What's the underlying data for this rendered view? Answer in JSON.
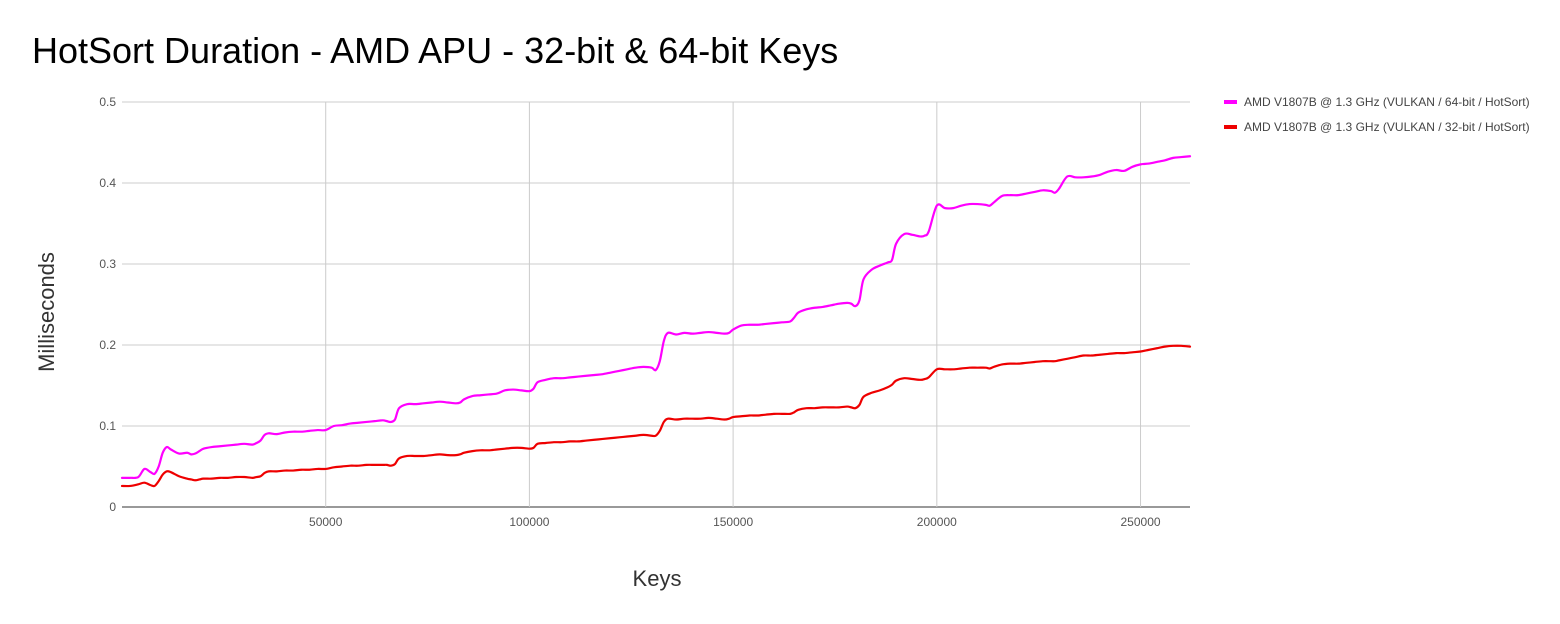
{
  "chart_data": {
    "type": "line",
    "title": "HotSort Duration - AMD APU - 32-bit & 64-bit Keys",
    "xlabel": "Keys",
    "ylabel": "Milliseconds",
    "xlim": [
      0,
      262144
    ],
    "ylim": [
      0,
      0.5
    ],
    "x_ticks": [
      50000,
      100000,
      150000,
      200000,
      250000
    ],
    "y_ticks": [
      0,
      0.1,
      0.2,
      0.3,
      0.4,
      0.5
    ],
    "grid": true,
    "legend_position": "top-right",
    "series": [
      {
        "name": "AMD V1807B @ 1.3 GHz (VULKAN / 64-bit / HotSort)",
        "color": "#ff00ff",
        "x": [
          0,
          2000,
          4000,
          5500,
          7000,
          8000,
          9000,
          10000,
          11000,
          12000,
          14000,
          16000,
          17000,
          18000,
          19000,
          20000,
          22000,
          24000,
          26000,
          28000,
          30000,
          32000,
          33000,
          34000,
          35000,
          36000,
          38000,
          40000,
          42000,
          44000,
          46000,
          48000,
          50000,
          52000,
          54000,
          56000,
          58000,
          60000,
          62000,
          64000,
          65000,
          66000,
          67000,
          68000,
          70000,
          72000,
          74000,
          76000,
          78000,
          80000,
          82000,
          83000,
          84000,
          86000,
          88000,
          90000,
          92000,
          94000,
          96000,
          98000,
          100000,
          101000,
          102000,
          104000,
          106000,
          108000,
          110000,
          112000,
          114000,
          116000,
          118000,
          120000,
          122000,
          124000,
          126000,
          128000,
          130000,
          131000,
          132000,
          133000,
          134000,
          136000,
          138000,
          140000,
          142000,
          144000,
          146000,
          148000,
          149000,
          150000,
          152000,
          154000,
          156000,
          158000,
          160000,
          162000,
          164000,
          165000,
          166000,
          168000,
          170000,
          172000,
          174000,
          176000,
          178000,
          179000,
          180000,
          181000,
          182000,
          184000,
          186000,
          188000,
          189000,
          190000,
          192000,
          194000,
          196000,
          197000,
          198000,
          200000,
          202000,
          204000,
          206000,
          208000,
          210000,
          212000,
          213000,
          214000,
          216000,
          218000,
          220000,
          222000,
          224000,
          226000,
          228000,
          229000,
          230000,
          232000,
          234000,
          236000,
          238000,
          240000,
          242000,
          244000,
          246000,
          248000,
          250000,
          252000,
          254000,
          256000,
          258000,
          260000,
          262144
        ],
        "values": [
          0.036,
          0.036,
          0.037,
          0.047,
          0.043,
          0.041,
          0.05,
          0.067,
          0.074,
          0.071,
          0.066,
          0.067,
          0.065,
          0.066,
          0.069,
          0.072,
          0.074,
          0.075,
          0.076,
          0.077,
          0.078,
          0.077,
          0.079,
          0.082,
          0.089,
          0.091,
          0.09,
          0.092,
          0.093,
          0.093,
          0.094,
          0.095,
          0.095,
          0.1,
          0.101,
          0.103,
          0.104,
          0.105,
          0.106,
          0.107,
          0.106,
          0.105,
          0.108,
          0.122,
          0.127,
          0.127,
          0.128,
          0.129,
          0.13,
          0.129,
          0.128,
          0.129,
          0.133,
          0.137,
          0.138,
          0.139,
          0.14,
          0.144,
          0.145,
          0.144,
          0.143,
          0.146,
          0.154,
          0.157,
          0.159,
          0.159,
          0.16,
          0.161,
          0.162,
          0.163,
          0.164,
          0.166,
          0.168,
          0.17,
          0.172,
          0.173,
          0.172,
          0.169,
          0.18,
          0.205,
          0.215,
          0.213,
          0.215,
          0.214,
          0.215,
          0.216,
          0.215,
          0.214,
          0.215,
          0.219,
          0.224,
          0.225,
          0.225,
          0.226,
          0.227,
          0.228,
          0.229,
          0.234,
          0.24,
          0.244,
          0.246,
          0.247,
          0.249,
          0.251,
          0.252,
          0.251,
          0.248,
          0.255,
          0.281,
          0.293,
          0.298,
          0.302,
          0.305,
          0.325,
          0.337,
          0.336,
          0.334,
          0.335,
          0.34,
          0.372,
          0.369,
          0.369,
          0.372,
          0.374,
          0.374,
          0.373,
          0.372,
          0.376,
          0.384,
          0.385,
          0.385,
          0.387,
          0.389,
          0.391,
          0.39,
          0.388,
          0.393,
          0.408,
          0.407,
          0.407,
          0.408,
          0.41,
          0.414,
          0.416,
          0.415,
          0.42,
          0.423,
          0.424,
          0.426,
          0.428,
          0.431,
          0.432,
          0.433
        ]
      },
      {
        "name": "AMD V1807B @ 1.3 GHz (VULKAN / 32-bit / HotSort)",
        "color": "#ee0000",
        "x": [
          0,
          2000,
          4000,
          5500,
          7000,
          8000,
          9000,
          10000,
          11000,
          12000,
          14000,
          16000,
          17000,
          18000,
          19000,
          20000,
          22000,
          24000,
          26000,
          28000,
          30000,
          32000,
          33000,
          34000,
          35000,
          36000,
          38000,
          40000,
          42000,
          44000,
          46000,
          48000,
          50000,
          52000,
          54000,
          56000,
          58000,
          60000,
          62000,
          64000,
          65000,
          66000,
          67000,
          68000,
          70000,
          72000,
          74000,
          76000,
          78000,
          80000,
          82000,
          83000,
          84000,
          86000,
          88000,
          90000,
          92000,
          94000,
          96000,
          98000,
          100000,
          101000,
          102000,
          104000,
          106000,
          108000,
          110000,
          112000,
          114000,
          116000,
          118000,
          120000,
          122000,
          124000,
          126000,
          128000,
          130000,
          131000,
          132000,
          133000,
          134000,
          136000,
          138000,
          140000,
          142000,
          144000,
          146000,
          148000,
          149000,
          150000,
          152000,
          154000,
          156000,
          158000,
          160000,
          162000,
          164000,
          165000,
          166000,
          168000,
          170000,
          172000,
          174000,
          176000,
          178000,
          179000,
          180000,
          181000,
          182000,
          184000,
          186000,
          188000,
          189000,
          190000,
          192000,
          194000,
          196000,
          197000,
          198000,
          200000,
          202000,
          204000,
          206000,
          208000,
          210000,
          212000,
          213000,
          214000,
          216000,
          218000,
          220000,
          222000,
          224000,
          226000,
          228000,
          229000,
          230000,
          232000,
          234000,
          236000,
          238000,
          240000,
          242000,
          244000,
          246000,
          248000,
          250000,
          252000,
          254000,
          256000,
          258000,
          260000,
          262144
        ],
        "values": [
          0.026,
          0.026,
          0.028,
          0.03,
          0.027,
          0.026,
          0.032,
          0.04,
          0.044,
          0.043,
          0.038,
          0.035,
          0.034,
          0.033,
          0.034,
          0.035,
          0.035,
          0.036,
          0.036,
          0.037,
          0.037,
          0.036,
          0.037,
          0.038,
          0.042,
          0.044,
          0.044,
          0.045,
          0.045,
          0.046,
          0.046,
          0.047,
          0.047,
          0.049,
          0.05,
          0.051,
          0.051,
          0.052,
          0.052,
          0.052,
          0.052,
          0.051,
          0.053,
          0.06,
          0.063,
          0.063,
          0.063,
          0.064,
          0.065,
          0.064,
          0.064,
          0.065,
          0.067,
          0.069,
          0.07,
          0.07,
          0.071,
          0.072,
          0.073,
          0.073,
          0.072,
          0.073,
          0.078,
          0.079,
          0.08,
          0.08,
          0.081,
          0.081,
          0.082,
          0.083,
          0.084,
          0.085,
          0.086,
          0.087,
          0.088,
          0.089,
          0.088,
          0.088,
          0.094,
          0.105,
          0.109,
          0.108,
          0.109,
          0.109,
          0.109,
          0.11,
          0.109,
          0.108,
          0.109,
          0.111,
          0.112,
          0.113,
          0.113,
          0.114,
          0.115,
          0.115,
          0.115,
          0.117,
          0.12,
          0.122,
          0.122,
          0.123,
          0.123,
          0.123,
          0.124,
          0.123,
          0.122,
          0.126,
          0.136,
          0.141,
          0.144,
          0.148,
          0.151,
          0.156,
          0.159,
          0.158,
          0.157,
          0.158,
          0.16,
          0.17,
          0.17,
          0.17,
          0.171,
          0.172,
          0.172,
          0.172,
          0.171,
          0.173,
          0.176,
          0.177,
          0.177,
          0.178,
          0.179,
          0.18,
          0.18,
          0.18,
          0.181,
          0.183,
          0.185,
          0.187,
          0.187,
          0.188,
          0.189,
          0.19,
          0.19,
          0.191,
          0.192,
          0.194,
          0.196,
          0.198,
          0.199,
          0.199,
          0.198
        ]
      }
    ]
  }
}
